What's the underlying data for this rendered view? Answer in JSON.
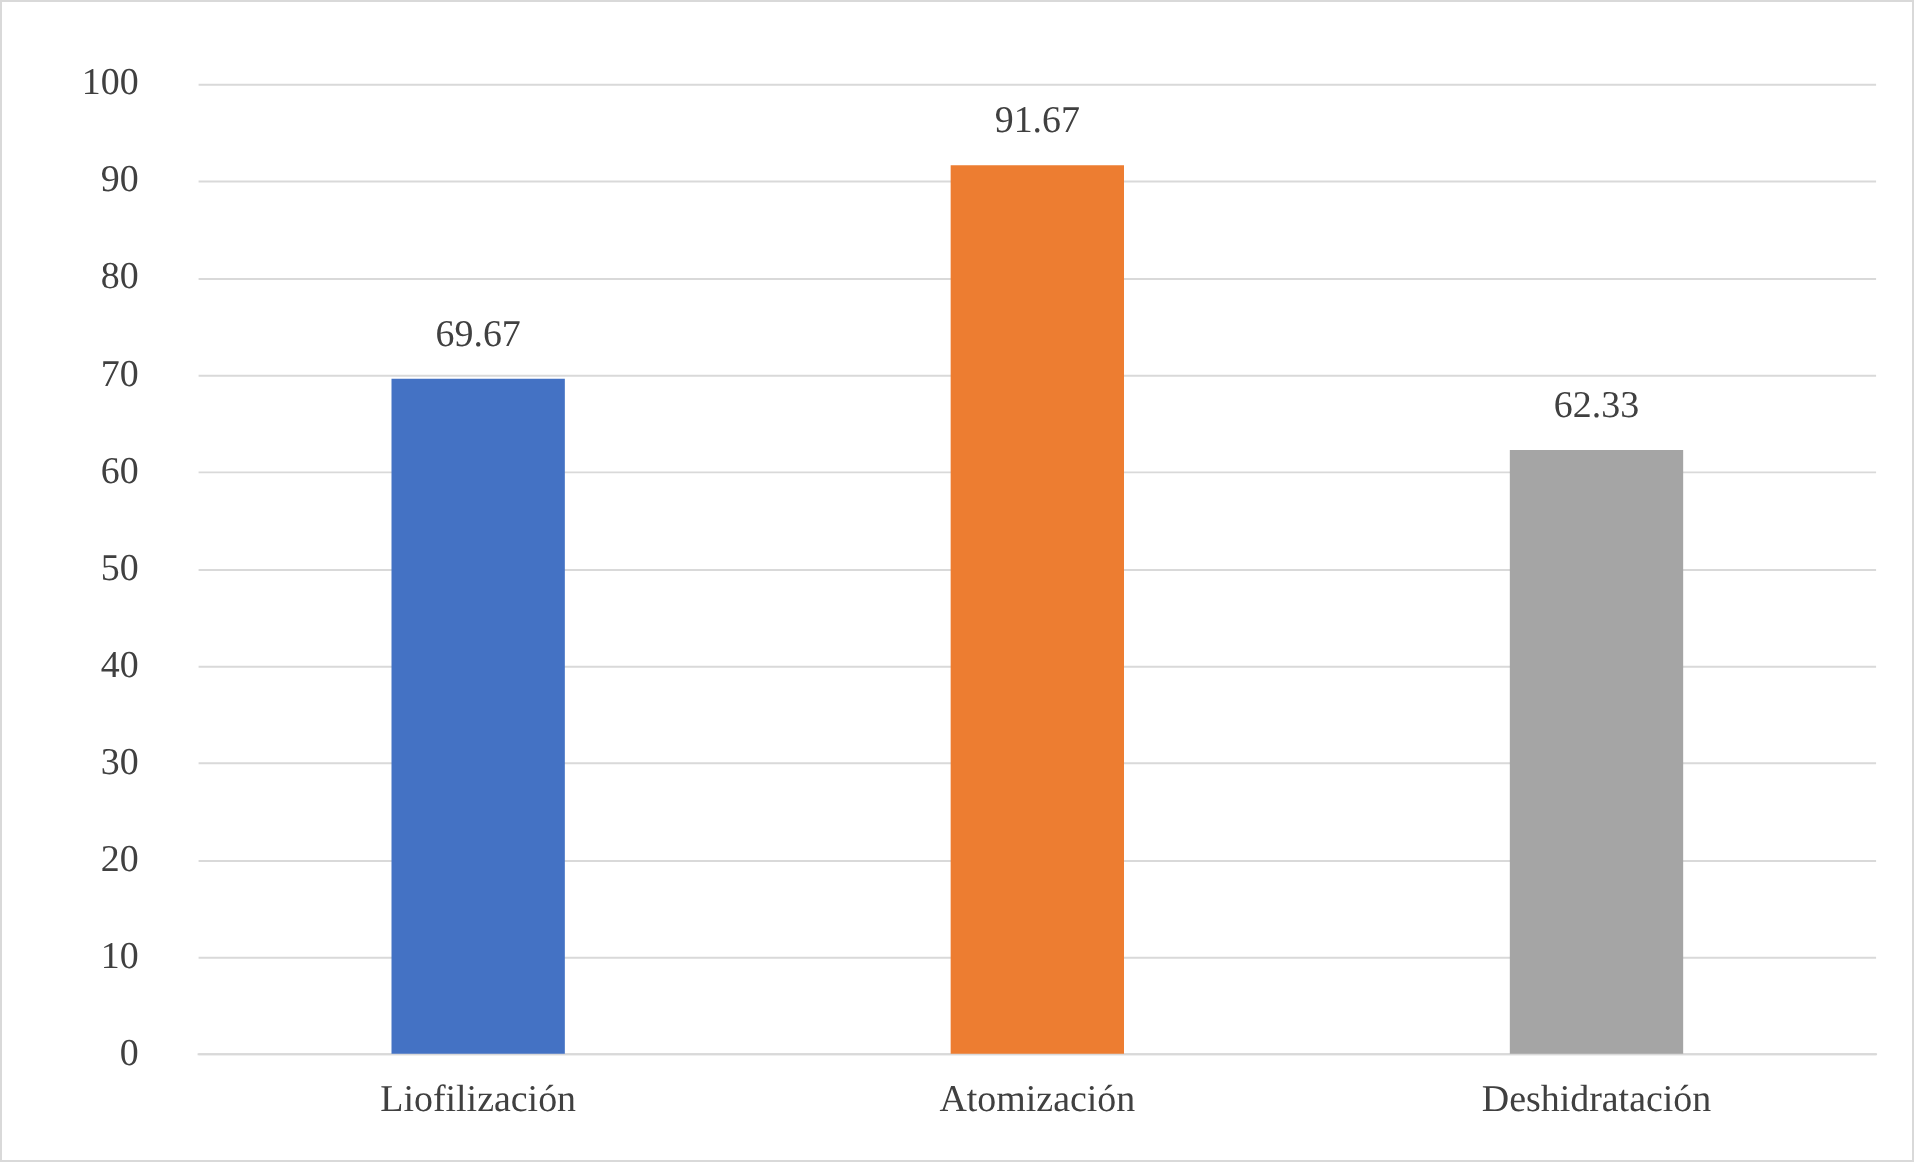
{
  "chart_data": {
    "type": "bar",
    "categories": [
      "Liofilización",
      "Atomización",
      "Deshidratación"
    ],
    "values": [
      69.67,
      91.67,
      62.33
    ],
    "colors": [
      "#4472c4",
      "#ed7d31",
      "#a5a5a5"
    ],
    "ylim": [
      0,
      100
    ],
    "yticks": [
      0,
      10,
      20,
      30,
      40,
      50,
      60,
      70,
      80,
      90,
      100
    ],
    "grid": "y",
    "data_labels": true
  }
}
